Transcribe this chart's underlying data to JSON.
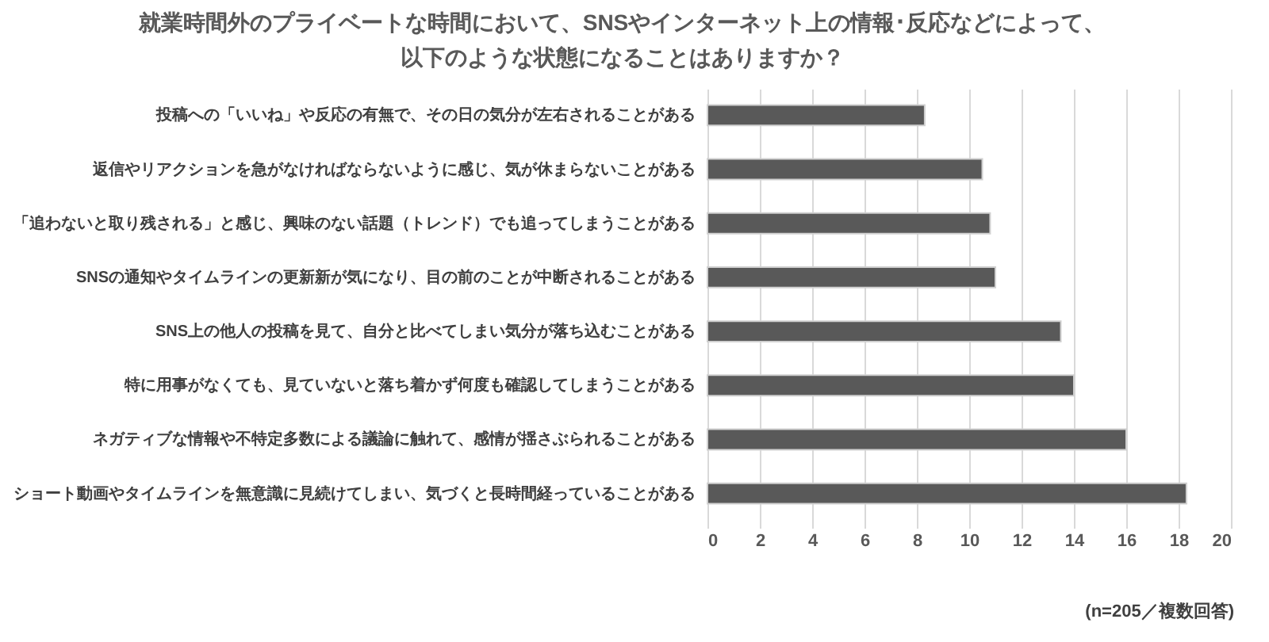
{
  "chart_data": {
    "type": "bar",
    "orientation": "horizontal",
    "title": "就業時間外のプライベートな時間において、SNSやインターネット上の情報･反応などによって、以下のような状態になることはありますか？",
    "categories": [
      "投稿への「いいね」や反応の有無で、その日の気分が左右されることがある",
      "返信やリアクションを急がなければならないように感じ、気が休まらないことがある",
      "「追わないと取り残される」と感じ、興味のない話題（トレンド）でも追ってしまうことがある",
      "SNSの通知やタイムラインの更新新が気になり、目の前のことが中断されることがある",
      "SNS上の他人の投稿を見て、自分と比べてしまい気分が落ち込むことがある",
      "特に用事がなくても、見ていないと落ち着かず何度も確認してしまうことがある",
      "ネガティブな情報や不特定多数による議論に触れて、感情が揺さぶられることがある",
      "ショート動画やタイムラインを無意識に見続けてしまい、気づくと長時間経っていることがある"
    ],
    "values": [
      8.3,
      10.5,
      10.8,
      11.0,
      13.5,
      14.0,
      16.0,
      18.3
    ],
    "color": "#595959",
    "xlim": [
      0,
      20
    ],
    "xticks": [
      0,
      2,
      4,
      6,
      8,
      10,
      12,
      14,
      16,
      18,
      20
    ],
    "grid": "x",
    "annotations": [
      "(n=205／複数回答)"
    ]
  }
}
